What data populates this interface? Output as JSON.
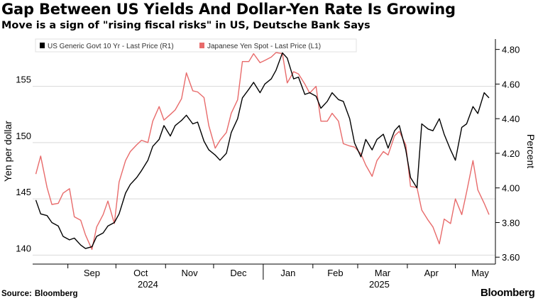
{
  "title": "Gap Between US Yields And Dollar-Yen Rate Is Growing",
  "subtitle": "Move is a sign of \"rising fiscal risks\" in US, Deutsche Bank Says",
  "source_label": "Source:",
  "source_value": "Bloomberg",
  "logo_text": "Bloomberg",
  "chart_data": {
    "type": "line",
    "left_axis": {
      "label": "Yen per dollar",
      "ticks": [
        140,
        145,
        150,
        155
      ],
      "range": [
        139.2,
        159.2
      ]
    },
    "right_axis": {
      "label": "Percent",
      "ticks": [
        "3.60",
        "3.80",
        "4.00",
        "4.20",
        "4.40",
        "4.60",
        "4.80"
      ],
      "range": [
        3.56,
        4.86
      ]
    },
    "x_axis": {
      "months": [
        "Sep",
        "Oct",
        "Nov",
        "Dec",
        "Jan",
        "Feb",
        "Mar",
        "Apr",
        "May"
      ],
      "years": [
        "2024",
        "2025"
      ]
    },
    "grid": true,
    "legend": {
      "placement": "top-left"
    },
    "colors": {
      "us_yield": "#000000",
      "yen": "#e86b6b",
      "grid": "#d9d9d9"
    },
    "series": [
      {
        "name": "US Generic Govt 10 Yr - Last Price (R1)",
        "axis": "right",
        "color": "#000000",
        "points": [
          [
            "2024-08-12",
            3.93
          ],
          [
            "2024-08-15",
            3.85
          ],
          [
            "2024-08-19",
            3.84
          ],
          [
            "2024-08-22",
            3.8
          ],
          [
            "2024-08-26",
            3.78
          ],
          [
            "2024-08-29",
            3.72
          ],
          [
            "2024-09-02",
            3.7
          ],
          [
            "2024-09-05",
            3.71
          ],
          [
            "2024-09-09",
            3.67
          ],
          [
            "2024-09-12",
            3.65
          ],
          [
            "2024-09-16",
            3.66
          ],
          [
            "2024-09-19",
            3.72
          ],
          [
            "2024-09-23",
            3.74
          ],
          [
            "2024-09-26",
            3.78
          ],
          [
            "2024-09-30",
            3.8
          ],
          [
            "2024-10-03",
            3.85
          ],
          [
            "2024-10-07",
            3.97
          ],
          [
            "2024-10-10",
            4.02
          ],
          [
            "2024-10-14",
            4.06
          ],
          [
            "2024-10-17",
            4.1
          ],
          [
            "2024-10-21",
            4.16
          ],
          [
            "2024-10-24",
            4.24
          ],
          [
            "2024-10-28",
            4.28
          ],
          [
            "2024-10-31",
            4.36
          ],
          [
            "2024-11-04",
            4.3
          ],
          [
            "2024-11-07",
            4.36
          ],
          [
            "2024-11-11",
            4.39
          ],
          [
            "2024-11-14",
            4.42
          ],
          [
            "2024-11-18",
            4.37
          ],
          [
            "2024-11-21",
            4.38
          ],
          [
            "2024-11-25",
            4.27
          ],
          [
            "2024-11-28",
            4.22
          ],
          [
            "2024-12-02",
            4.19
          ],
          [
            "2024-12-05",
            4.16
          ],
          [
            "2024-12-09",
            4.2
          ],
          [
            "2024-12-12",
            4.32
          ],
          [
            "2024-12-16",
            4.4
          ],
          [
            "2024-12-19",
            4.52
          ],
          [
            "2024-12-23",
            4.57
          ],
          [
            "2024-12-26",
            4.61
          ],
          [
            "2024-12-30",
            4.55
          ],
          [
            "2025-01-02",
            4.6
          ],
          [
            "2025-01-06",
            4.63
          ],
          [
            "2025-01-09",
            4.68
          ],
          [
            "2025-01-13",
            4.78
          ],
          [
            "2025-01-16",
            4.75
          ],
          [
            "2025-01-20",
            4.63
          ],
          [
            "2025-01-23",
            4.64
          ],
          [
            "2025-01-27",
            4.54
          ],
          [
            "2025-01-30",
            4.55
          ],
          [
            "2025-02-03",
            4.53
          ],
          [
            "2025-02-06",
            4.46
          ],
          [
            "2025-02-10",
            4.5
          ],
          [
            "2025-02-13",
            4.55
          ],
          [
            "2025-02-17",
            4.51
          ],
          [
            "2025-02-20",
            4.5
          ],
          [
            "2025-02-24",
            4.4
          ],
          [
            "2025-02-27",
            4.26
          ],
          [
            "2025-03-03",
            4.18
          ],
          [
            "2025-03-06",
            4.28
          ],
          [
            "2025-03-10",
            4.22
          ],
          [
            "2025-03-13",
            4.28
          ],
          [
            "2025-03-17",
            4.31
          ],
          [
            "2025-03-20",
            4.23
          ],
          [
            "2025-03-24",
            4.33
          ],
          [
            "2025-03-27",
            4.36
          ],
          [
            "2025-03-31",
            4.22
          ],
          [
            "2025-04-03",
            4.06
          ],
          [
            "2025-04-07",
            4.0
          ],
          [
            "2025-04-10",
            4.37
          ],
          [
            "2025-04-14",
            4.34
          ],
          [
            "2025-04-17",
            4.33
          ],
          [
            "2025-04-21",
            4.4
          ],
          [
            "2025-04-24",
            4.31
          ],
          [
            "2025-04-28",
            4.22
          ],
          [
            "2025-05-01",
            4.16
          ],
          [
            "2025-05-05",
            4.35
          ],
          [
            "2025-05-08",
            4.37
          ],
          [
            "2025-05-12",
            4.47
          ],
          [
            "2025-05-15",
            4.43
          ],
          [
            "2025-05-19",
            4.55
          ],
          [
            "2025-05-22",
            4.52
          ]
        ]
      },
      {
        "name": "Japanese Yen Spot - Last Price (L1)",
        "axis": "left",
        "color": "#e86b6b",
        "points": [
          [
            "2024-08-12",
            147.2
          ],
          [
            "2024-08-15",
            148.8
          ],
          [
            "2024-08-19",
            146.0
          ],
          [
            "2024-08-22",
            144.5
          ],
          [
            "2024-08-26",
            144.6
          ],
          [
            "2024-08-29",
            145.5
          ],
          [
            "2024-09-02",
            145.9
          ],
          [
            "2024-09-05",
            143.4
          ],
          [
            "2024-09-09",
            143.1
          ],
          [
            "2024-09-12",
            141.8
          ],
          [
            "2024-09-16",
            140.5
          ],
          [
            "2024-09-19",
            142.5
          ],
          [
            "2024-09-23",
            143.6
          ],
          [
            "2024-09-26",
            144.8
          ],
          [
            "2024-09-30",
            142.8
          ],
          [
            "2024-10-03",
            146.5
          ],
          [
            "2024-10-07",
            148.4
          ],
          [
            "2024-10-10",
            149.2
          ],
          [
            "2024-10-14",
            149.8
          ],
          [
            "2024-10-17",
            150.2
          ],
          [
            "2024-10-21",
            150.0
          ],
          [
            "2024-10-24",
            151.9
          ],
          [
            "2024-10-28",
            153.2
          ],
          [
            "2024-10-31",
            152.0
          ],
          [
            "2024-11-04",
            152.5
          ],
          [
            "2024-11-07",
            152.9
          ],
          [
            "2024-11-11",
            153.9
          ],
          [
            "2024-11-14",
            156.2
          ],
          [
            "2024-11-18",
            154.6
          ],
          [
            "2024-11-21",
            154.5
          ],
          [
            "2024-11-25",
            154.0
          ],
          [
            "2024-11-28",
            151.5
          ],
          [
            "2024-12-02",
            149.5
          ],
          [
            "2024-12-05",
            150.2
          ],
          [
            "2024-12-09",
            150.9
          ],
          [
            "2024-12-12",
            152.6
          ],
          [
            "2024-12-16",
            153.8
          ],
          [
            "2024-12-19",
            157.2
          ],
          [
            "2024-12-23",
            157.2
          ],
          [
            "2024-12-26",
            157.9
          ],
          [
            "2024-12-30",
            157.1
          ],
          [
            "2025-01-02",
            157.3
          ],
          [
            "2025-01-06",
            157.6
          ],
          [
            "2025-01-09",
            158.0
          ],
          [
            "2025-01-13",
            157.9
          ],
          [
            "2025-01-16",
            155.3
          ],
          [
            "2025-01-20",
            156.3
          ],
          [
            "2025-01-23",
            156.1
          ],
          [
            "2025-01-27",
            155.2
          ],
          [
            "2025-01-30",
            154.4
          ],
          [
            "2025-02-03",
            155.0
          ],
          [
            "2025-02-06",
            151.9
          ],
          [
            "2025-02-10",
            151.9
          ],
          [
            "2025-02-13",
            152.6
          ],
          [
            "2025-02-17",
            151.9
          ],
          [
            "2025-02-20",
            149.9
          ],
          [
            "2025-02-24",
            149.7
          ],
          [
            "2025-02-27",
            149.6
          ],
          [
            "2025-03-03",
            149.0
          ],
          [
            "2025-03-06",
            148.0
          ],
          [
            "2025-03-10",
            147.0
          ],
          [
            "2025-03-13",
            148.4
          ],
          [
            "2025-03-17",
            149.2
          ],
          [
            "2025-03-20",
            148.9
          ],
          [
            "2025-03-24",
            150.6
          ],
          [
            "2025-03-27",
            151.0
          ],
          [
            "2025-03-31",
            149.8
          ],
          [
            "2025-04-03",
            146.1
          ],
          [
            "2025-04-07",
            146.0
          ],
          [
            "2025-04-10",
            144.0
          ],
          [
            "2025-04-14",
            143.1
          ],
          [
            "2025-04-17",
            142.5
          ],
          [
            "2025-04-21",
            141.0
          ],
          [
            "2025-04-24",
            143.2
          ],
          [
            "2025-04-28",
            142.8
          ],
          [
            "2025-05-01",
            145.0
          ],
          [
            "2025-05-05",
            143.6
          ],
          [
            "2025-05-08",
            145.6
          ],
          [
            "2025-05-12",
            148.4
          ],
          [
            "2025-05-15",
            145.8
          ],
          [
            "2025-05-19",
            144.6
          ],
          [
            "2025-05-22",
            143.6
          ]
        ]
      }
    ]
  }
}
